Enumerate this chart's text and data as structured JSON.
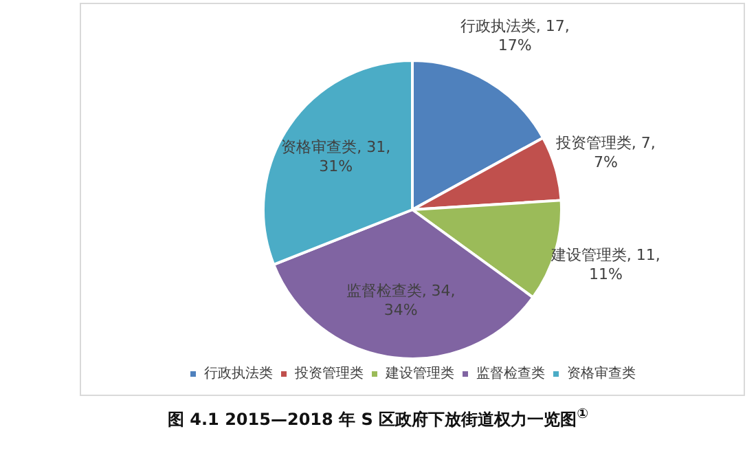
{
  "chart_data": {
    "type": "pie",
    "categories": [
      "行政执法类",
      "投资管理类",
      "建设管理类",
      "监督检查类",
      "资格审查类"
    ],
    "values": [
      17,
      7,
      11,
      34,
      31
    ],
    "colors": [
      "#4f81bd",
      "#c0504d",
      "#9bbb59",
      "#8064a2",
      "#4bacc6"
    ],
    "value_labels": [
      "行政执法类, 17, 17%",
      "投资管理类, 7, 7%",
      "建设管理类, 11, 11%",
      "监督检查类, 34, 34%",
      "资格审查类, 31, 31%"
    ],
    "legend": "bottom",
    "annotations": [
      "图 4.1 2015—2018 年 S 区政府下放街道权力一览图$^{①}$"
    ]
  }
}
